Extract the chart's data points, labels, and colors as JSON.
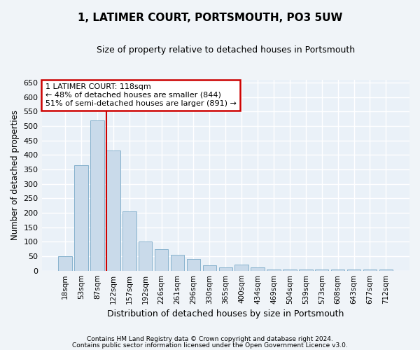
{
  "title": "1, LATIMER COURT, PORTSMOUTH, PO3 5UW",
  "subtitle": "Size of property relative to detached houses in Portsmouth",
  "xlabel": "Distribution of detached houses by size in Portsmouth",
  "ylabel": "Number of detached properties",
  "bar_color": "#c9daea",
  "bar_edge_color": "#7aaac8",
  "background_color": "#eaf1f8",
  "fig_background_color": "#f0f4f8",
  "grid_color": "#ffffff",
  "categories": [
    "18sqm",
    "53sqm",
    "87sqm",
    "122sqm",
    "157sqm",
    "192sqm",
    "226sqm",
    "261sqm",
    "296sqm",
    "330sqm",
    "365sqm",
    "400sqm",
    "434sqm",
    "469sqm",
    "504sqm",
    "539sqm",
    "573sqm",
    "608sqm",
    "643sqm",
    "677sqm",
    "712sqm"
  ],
  "values": [
    50,
    365,
    520,
    415,
    205,
    100,
    75,
    55,
    40,
    18,
    12,
    20,
    12,
    5,
    5,
    5,
    5,
    5,
    5,
    5,
    5
  ],
  "ylim": [
    0,
    660
  ],
  "yticks": [
    0,
    50,
    100,
    150,
    200,
    250,
    300,
    350,
    400,
    450,
    500,
    550,
    600,
    650
  ],
  "red_line_color": "#cc0000",
  "red_line_x": 2.55,
  "annotation_text": "1 LATIMER COURT: 118sqm\n← 48% of detached houses are smaller (844)\n51% of semi-detached houses are larger (891) →",
  "annotation_box_color": "#ffffff",
  "annotation_box_edge": "#cc0000",
  "footer_line1": "Contains HM Land Registry data © Crown copyright and database right 2024.",
  "footer_line2": "Contains public sector information licensed under the Open Government Licence v3.0."
}
